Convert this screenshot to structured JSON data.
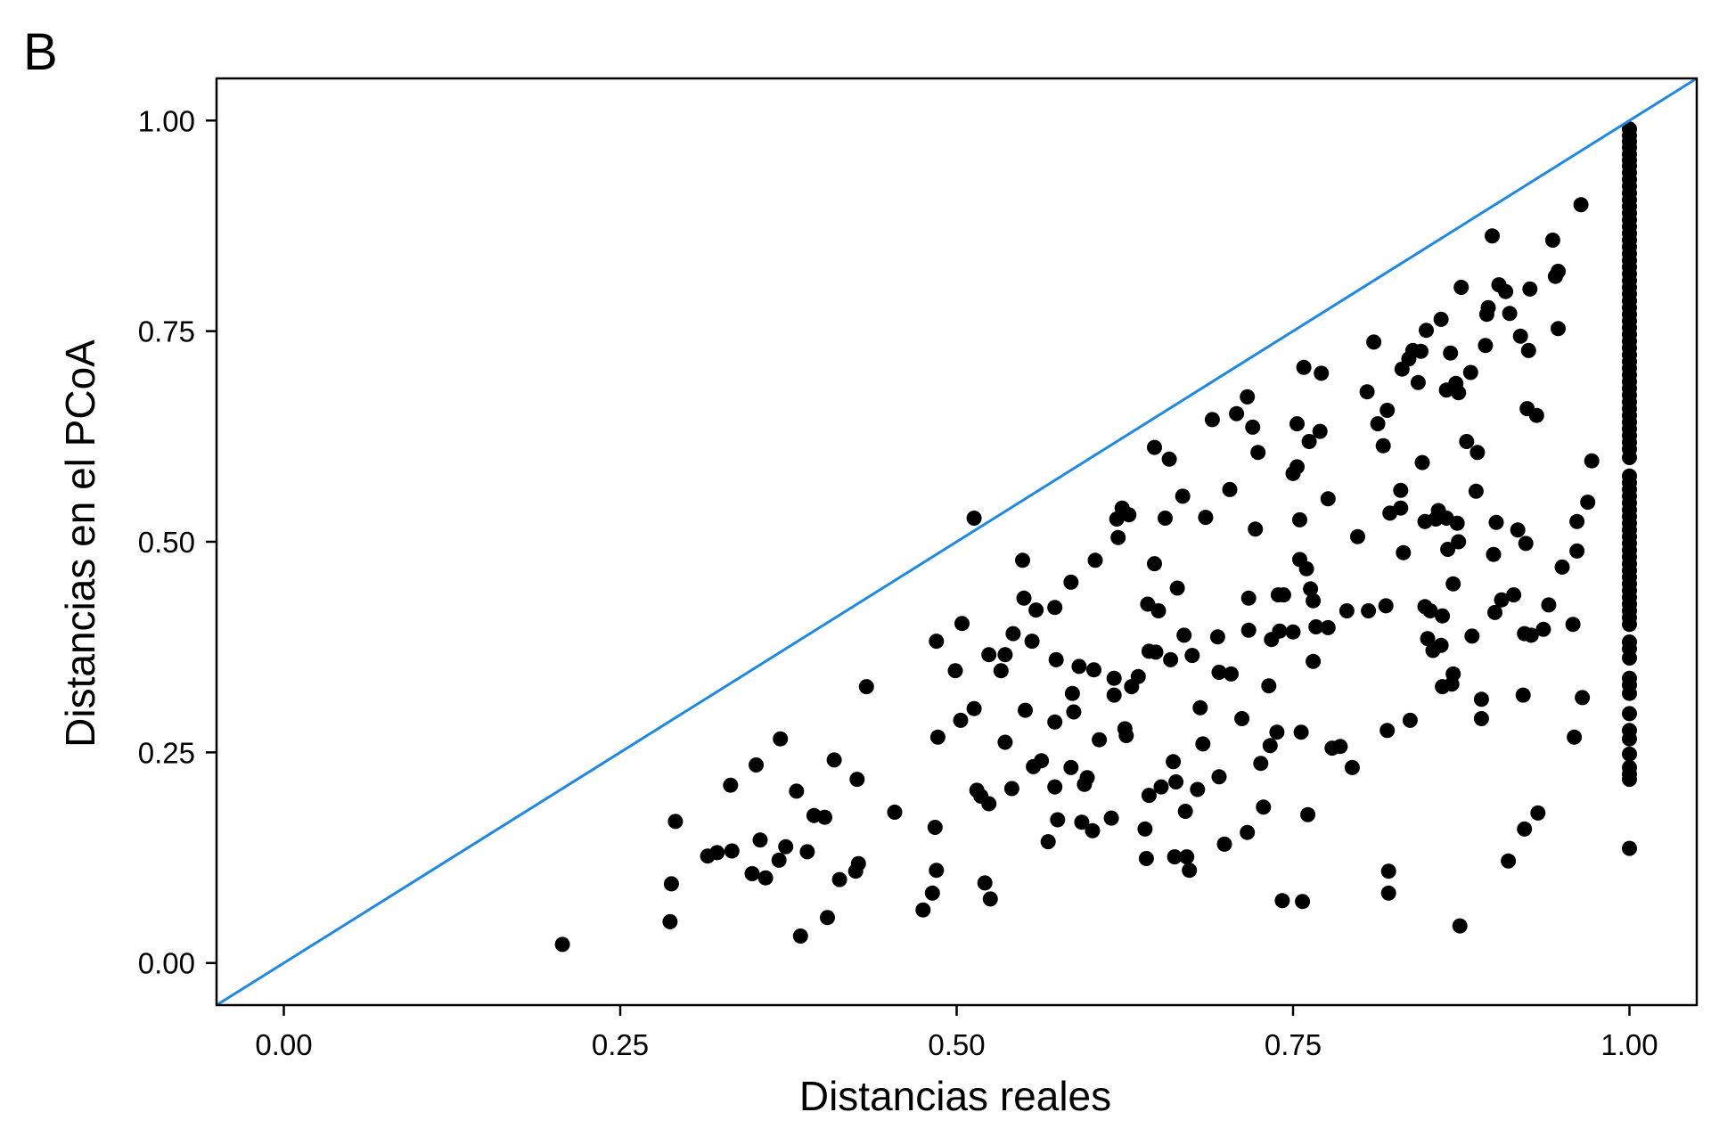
{
  "panel_label": "B",
  "chart_data": {
    "type": "scatter",
    "title": "",
    "xlabel": "Distancias reales",
    "ylabel": "Distancias en el PCoA",
    "xlim": [
      -0.05,
      1.05
    ],
    "ylim": [
      -0.05,
      1.05
    ],
    "xticks": [
      "0.00",
      "0.25",
      "0.50",
      "0.75",
      "1.00"
    ],
    "yticks": [
      "0.00",
      "0.25",
      "0.50",
      "0.75",
      "1.00"
    ],
    "grid": false,
    "legend": "none",
    "reference_line": {
      "label": "",
      "slope": 1,
      "intercept": 0,
      "color": "#1E88E5"
    },
    "point_color": "#000000",
    "points": [
      [
        0.207,
        0.022
      ],
      [
        0.287,
        0.049
      ],
      [
        0.288,
        0.094
      ],
      [
        0.291,
        0.168
      ],
      [
        0.315,
        0.127
      ],
      [
        0.322,
        0.131
      ],
      [
        0.332,
        0.211
      ],
      [
        0.333,
        0.133
      ],
      [
        0.348,
        0.106
      ],
      [
        0.351,
        0.235
      ],
      [
        0.354,
        0.146
      ],
      [
        0.358,
        0.101
      ],
      [
        0.368,
        0.122
      ],
      [
        0.369,
        0.266
      ],
      [
        0.373,
        0.138
      ],
      [
        0.381,
        0.204
      ],
      [
        0.384,
        0.032
      ],
      [
        0.389,
        0.132
      ],
      [
        0.394,
        0.175
      ],
      [
        0.402,
        0.173
      ],
      [
        0.404,
        0.054
      ],
      [
        0.409,
        0.241
      ],
      [
        0.413,
        0.099
      ],
      [
        0.425,
        0.109
      ],
      [
        0.426,
        0.218
      ],
      [
        0.427,
        0.118
      ],
      [
        0.433,
        0.328
      ],
      [
        0.454,
        0.179
      ],
      [
        0.475,
        0.063
      ],
      [
        0.482,
        0.083
      ],
      [
        0.484,
        0.161
      ],
      [
        0.485,
        0.11
      ],
      [
        0.485,
        0.382
      ],
      [
        0.486,
        0.268
      ],
      [
        0.499,
        0.347
      ],
      [
        0.503,
        0.288
      ],
      [
        0.504,
        0.403
      ],
      [
        0.513,
        0.528
      ],
      [
        0.513,
        0.302
      ],
      [
        0.515,
        0.205
      ],
      [
        0.518,
        0.198
      ],
      [
        0.521,
        0.095
      ],
      [
        0.524,
        0.189
      ],
      [
        0.524,
        0.366
      ],
      [
        0.525,
        0.076
      ],
      [
        0.533,
        0.347
      ],
      [
        0.536,
        0.366
      ],
      [
        0.536,
        0.262
      ],
      [
        0.541,
        0.207
      ],
      [
        0.542,
        0.391
      ],
      [
        0.549,
        0.478
      ],
      [
        0.55,
        0.433
      ],
      [
        0.551,
        0.3
      ],
      [
        0.556,
        0.382
      ],
      [
        0.557,
        0.233
      ],
      [
        0.559,
        0.419
      ],
      [
        0.563,
        0.24
      ],
      [
        0.568,
        0.144
      ],
      [
        0.573,
        0.422
      ],
      [
        0.573,
        0.286
      ],
      [
        0.573,
        0.209
      ],
      [
        0.574,
        0.36
      ],
      [
        0.575,
        0.17
      ],
      [
        0.585,
        0.232
      ],
      [
        0.585,
        0.452
      ],
      [
        0.586,
        0.32
      ],
      [
        0.587,
        0.298
      ],
      [
        0.591,
        0.352
      ],
      [
        0.593,
        0.167
      ],
      [
        0.595,
        0.212
      ],
      [
        0.597,
        0.22
      ],
      [
        0.601,
        0.157
      ],
      [
        0.602,
        0.348
      ],
      [
        0.603,
        0.478
      ],
      [
        0.606,
        0.265
      ],
      [
        0.615,
        0.172
      ],
      [
        0.617,
        0.318
      ],
      [
        0.617,
        0.338
      ],
      [
        0.619,
        0.527
      ],
      [
        0.62,
        0.505
      ],
      [
        0.623,
        0.54
      ],
      [
        0.625,
        0.278
      ],
      [
        0.626,
        0.27
      ],
      [
        0.628,
        0.532
      ],
      [
        0.63,
        0.328
      ],
      [
        0.635,
        0.34
      ],
      [
        0.64,
        0.159
      ],
      [
        0.641,
        0.124
      ],
      [
        0.642,
        0.426
      ],
      [
        0.643,
        0.199
      ],
      [
        0.643,
        0.37
      ],
      [
        0.647,
        0.612
      ],
      [
        0.647,
        0.474
      ],
      [
        0.648,
        0.369
      ],
      [
        0.65,
        0.418
      ],
      [
        0.652,
        0.209
      ],
      [
        0.655,
        0.528
      ],
      [
        0.658,
        0.598
      ],
      [
        0.659,
        0.36
      ],
      [
        0.661,
        0.239
      ],
      [
        0.662,
        0.126
      ],
      [
        0.663,
        0.215
      ],
      [
        0.664,
        0.445
      ],
      [
        0.668,
        0.554
      ],
      [
        0.669,
        0.389
      ],
      [
        0.67,
        0.18
      ],
      [
        0.671,
        0.126
      ],
      [
        0.673,
        0.11
      ],
      [
        0.675,
        0.365
      ],
      [
        0.679,
        0.206
      ],
      [
        0.681,
        0.303
      ],
      [
        0.683,
        0.26
      ],
      [
        0.685,
        0.529
      ],
      [
        0.69,
        0.645
      ],
      [
        0.694,
        0.387
      ],
      [
        0.695,
        0.221
      ],
      [
        0.695,
        0.345
      ],
      [
        0.699,
        0.141
      ],
      [
        0.703,
        0.562
      ],
      [
        0.704,
        0.343
      ],
      [
        0.708,
        0.652
      ],
      [
        0.712,
        0.29
      ],
      [
        0.716,
        0.672
      ],
      [
        0.716,
        0.155
      ],
      [
        0.717,
        0.433
      ],
      [
        0.717,
        0.395
      ],
      [
        0.72,
        0.636
      ],
      [
        0.722,
        0.515
      ],
      [
        0.724,
        0.606
      ],
      [
        0.726,
        0.237
      ],
      [
        0.728,
        0.185
      ],
      [
        0.732,
        0.329
      ],
      [
        0.733,
        0.258
      ],
      [
        0.734,
        0.384
      ],
      [
        0.738,
        0.274
      ],
      [
        0.739,
        0.437
      ],
      [
        0.74,
        0.394
      ],
      [
        0.742,
        0.074
      ],
      [
        0.743,
        0.437
      ],
      [
        0.75,
        0.581
      ],
      [
        0.75,
        0.393
      ],
      [
        0.753,
        0.64
      ],
      [
        0.753,
        0.589
      ],
      [
        0.755,
        0.479
      ],
      [
        0.755,
        0.526
      ],
      [
        0.756,
        0.274
      ],
      [
        0.757,
        0.073
      ],
      [
        0.758,
        0.707
      ],
      [
        0.76,
        0.468
      ],
      [
        0.761,
        0.176
      ],
      [
        0.762,
        0.619
      ],
      [
        0.763,
        0.444
      ],
      [
        0.765,
        0.43
      ],
      [
        0.765,
        0.358
      ],
      [
        0.767,
        0.399
      ],
      [
        0.77,
        0.631
      ],
      [
        0.771,
        0.7
      ],
      [
        0.776,
        0.398
      ],
      [
        0.776,
        0.551
      ],
      [
        0.779,
        0.255
      ],
      [
        0.785,
        0.257
      ],
      [
        0.79,
        0.418
      ],
      [
        0.794,
        0.232
      ],
      [
        0.798,
        0.506
      ],
      [
        0.805,
        0.678
      ],
      [
        0.806,
        0.418
      ],
      [
        0.81,
        0.737
      ],
      [
        0.813,
        0.64
      ],
      [
        0.817,
        0.614
      ],
      [
        0.819,
        0.424
      ],
      [
        0.82,
        0.656
      ],
      [
        0.821,
        0.109
      ],
      [
        0.821,
        0.083
      ],
      [
        0.82,
        0.276
      ],
      [
        0.822,
        0.534
      ],
      [
        0.83,
        0.54
      ],
      [
        0.83,
        0.561
      ],
      [
        0.831,
        0.705
      ],
      [
        0.832,
        0.487
      ],
      [
        0.836,
        0.717
      ],
      [
        0.837,
        0.288
      ],
      [
        0.839,
        0.727
      ],
      [
        0.843,
        0.689
      ],
      [
        0.845,
        0.726
      ],
      [
        0.846,
        0.594
      ],
      [
        0.848,
        0.423
      ],
      [
        0.848,
        0.524
      ],
      [
        0.849,
        0.751
      ],
      [
        0.85,
        0.385
      ],
      [
        0.852,
        0.418
      ],
      [
        0.854,
        0.371
      ],
      [
        0.856,
        0.527
      ],
      [
        0.858,
        0.537
      ],
      [
        0.86,
        0.764
      ],
      [
        0.86,
        0.377
      ],
      [
        0.861,
        0.328
      ],
      [
        0.861,
        0.412
      ],
      [
        0.864,
        0.68
      ],
      [
        0.864,
        0.528
      ],
      [
        0.865,
        0.491
      ],
      [
        0.867,
        0.724
      ],
      [
        0.868,
        0.331
      ],
      [
        0.869,
        0.343
      ],
      [
        0.869,
        0.45
      ],
      [
        0.871,
        0.688
      ],
      [
        0.872,
        0.522
      ],
      [
        0.873,
        0.5
      ],
      [
        0.873,
        0.677
      ],
      [
        0.874,
        0.044
      ],
      [
        0.875,
        0.802
      ],
      [
        0.879,
        0.619
      ],
      [
        0.882,
        0.701
      ],
      [
        0.883,
        0.388
      ],
      [
        0.886,
        0.56
      ],
      [
        0.887,
        0.606
      ],
      [
        0.89,
        0.313
      ],
      [
        0.89,
        0.29
      ],
      [
        0.893,
        0.733
      ],
      [
        0.894,
        0.77
      ],
      [
        0.895,
        0.778
      ],
      [
        0.898,
        0.863
      ],
      [
        0.899,
        0.485
      ],
      [
        0.9,
        0.416
      ],
      [
        0.901,
        0.523
      ],
      [
        0.903,
        0.805
      ],
      [
        0.905,
        0.431
      ],
      [
        0.908,
        0.797
      ],
      [
        0.91,
        0.121
      ],
      [
        0.911,
        0.771
      ],
      [
        0.914,
        0.437
      ],
      [
        0.917,
        0.514
      ],
      [
        0.919,
        0.744
      ],
      [
        0.921,
        0.318
      ],
      [
        0.922,
        0.159
      ],
      [
        0.922,
        0.391
      ],
      [
        0.923,
        0.498
      ],
      [
        0.924,
        0.658
      ],
      [
        0.925,
        0.727
      ],
      [
        0.926,
        0.8
      ],
      [
        0.927,
        0.389
      ],
      [
        0.931,
        0.65
      ],
      [
        0.932,
        0.178
      ],
      [
        0.936,
        0.396
      ],
      [
        0.94,
        0.425
      ],
      [
        0.943,
        0.858
      ],
      [
        0.945,
        0.815
      ],
      [
        0.947,
        0.821
      ],
      [
        0.947,
        0.753
      ],
      [
        0.95,
        0.47
      ],
      [
        0.958,
        0.402
      ],
      [
        0.959,
        0.268
      ],
      [
        0.961,
        0.489
      ],
      [
        0.961,
        0.524
      ],
      [
        0.964,
        0.9
      ],
      [
        0.965,
        0.315
      ],
      [
        0.969,
        0.547
      ],
      [
        0.972,
        0.596
      ],
      [
        1.0,
        0.99
      ],
      [
        1.0,
        0.982
      ],
      [
        1.0,
        0.975
      ],
      [
        1.0,
        0.968
      ],
      [
        1.0,
        0.96
      ],
      [
        1.0,
        0.953
      ],
      [
        1.0,
        0.946
      ],
      [
        1.0,
        0.938
      ],
      [
        1.0,
        0.93
      ],
      [
        1.0,
        0.922
      ],
      [
        1.0,
        0.914
      ],
      [
        1.0,
        0.906
      ],
      [
        1.0,
        0.898
      ],
      [
        1.0,
        0.89
      ],
      [
        1.0,
        0.882
      ],
      [
        1.0,
        0.874
      ],
      [
        1.0,
        0.866
      ],
      [
        1.0,
        0.858
      ],
      [
        1.0,
        0.85
      ],
      [
        1.0,
        0.842
      ],
      [
        1.0,
        0.834
      ],
      [
        1.0,
        0.826
      ],
      [
        1.0,
        0.818
      ],
      [
        1.0,
        0.81
      ],
      [
        1.0,
        0.802
      ],
      [
        1.0,
        0.794
      ],
      [
        1.0,
        0.786
      ],
      [
        1.0,
        0.778
      ],
      [
        1.0,
        0.77
      ],
      [
        1.0,
        0.762
      ],
      [
        1.0,
        0.754
      ],
      [
        1.0,
        0.746
      ],
      [
        1.0,
        0.738
      ],
      [
        1.0,
        0.73
      ],
      [
        1.0,
        0.722
      ],
      [
        1.0,
        0.714
      ],
      [
        1.0,
        0.706
      ],
      [
        1.0,
        0.698
      ],
      [
        1.0,
        0.69
      ],
      [
        1.0,
        0.682
      ],
      [
        1.0,
        0.674
      ],
      [
        1.0,
        0.666
      ],
      [
        1.0,
        0.658
      ],
      [
        1.0,
        0.65
      ],
      [
        1.0,
        0.642
      ],
      [
        1.0,
        0.634
      ],
      [
        1.0,
        0.626
      ],
      [
        1.0,
        0.618
      ],
      [
        1.0,
        0.61
      ],
      [
        1.0,
        0.6
      ],
      [
        1.0,
        0.578
      ],
      [
        1.0,
        0.57
      ],
      [
        1.0,
        0.562
      ],
      [
        1.0,
        0.554
      ],
      [
        1.0,
        0.546
      ],
      [
        1.0,
        0.538
      ],
      [
        1.0,
        0.53
      ],
      [
        1.0,
        0.522
      ],
      [
        1.0,
        0.514
      ],
      [
        1.0,
        0.506
      ],
      [
        1.0,
        0.498
      ],
      [
        1.0,
        0.49
      ],
      [
        1.0,
        0.482
      ],
      [
        1.0,
        0.474
      ],
      [
        1.0,
        0.466
      ],
      [
        1.0,
        0.458
      ],
      [
        1.0,
        0.45
      ],
      [
        1.0,
        0.442
      ],
      [
        1.0,
        0.434
      ],
      [
        1.0,
        0.426
      ],
      [
        1.0,
        0.418
      ],
      [
        1.0,
        0.41
      ],
      [
        1.0,
        0.402
      ],
      [
        1.0,
        0.381
      ],
      [
        1.0,
        0.373
      ],
      [
        1.0,
        0.362
      ],
      [
        1.0,
        0.338
      ],
      [
        1.0,
        0.33
      ],
      [
        1.0,
        0.32
      ],
      [
        1.0,
        0.296
      ],
      [
        1.0,
        0.276
      ],
      [
        1.0,
        0.266
      ],
      [
        1.0,
        0.248
      ],
      [
        1.0,
        0.232
      ],
      [
        1.0,
        0.224
      ],
      [
        1.0,
        0.218
      ],
      [
        1.0,
        0.136
      ]
    ]
  }
}
